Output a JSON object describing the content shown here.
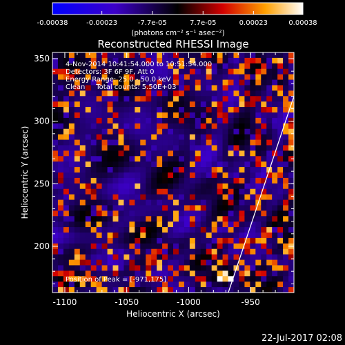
{
  "chart_data": {
    "type": "heatmap",
    "colorbar": {
      "tick_labels": [
        "-0.00038",
        "-0.00023",
        "-7.7e-05",
        "7.7e-05",
        "0.00023",
        "0.00038"
      ],
      "ticks": [
        -0.00038,
        -0.00023,
        -7.7e-05,
        7.7e-05,
        0.00023,
        0.00038
      ],
      "range": [
        -0.00038,
        0.00038
      ],
      "units": "(photons cm⁻² s⁻¹ asec⁻²)"
    },
    "title": "Reconstructed RHESSI Image",
    "annotations": [
      "4-Nov-2014 10:41:54.000 to 10:51:54.000",
      "Detectors: 3F 6F 9F, Att 0",
      "Energy Range: 25.0 - 50.0 keV",
      "Clean     Total counts: 5.50E+03"
    ],
    "peak_label": "Position of Peak = [-971,175]",
    "peak": [
      -971,
      175
    ],
    "xlabel": "Heliocentric X (arcsec)",
    "ylabel": "Heliocentric Y (arcsec)",
    "xlim": [
      -1110,
      -915
    ],
    "ylim": [
      163,
      355
    ],
    "x_ticks": [
      -1100,
      -1050,
      -1000,
      -950
    ],
    "x_tick_labels": [
      "-1100",
      "-1050",
      "-1000",
      "-950"
    ],
    "y_ticks": [
      200,
      250,
      300,
      350
    ],
    "y_tick_labels": [
      "200",
      "250",
      "300",
      "350"
    ],
    "limb_points": [
      [
        -968,
        163
      ],
      [
        -915,
        320
      ]
    ],
    "grid": false
  },
  "footer": {
    "date": "22-Jul-2017 02:08"
  },
  "colors": {
    "background": "#000000",
    "text": "#ffffff"
  }
}
